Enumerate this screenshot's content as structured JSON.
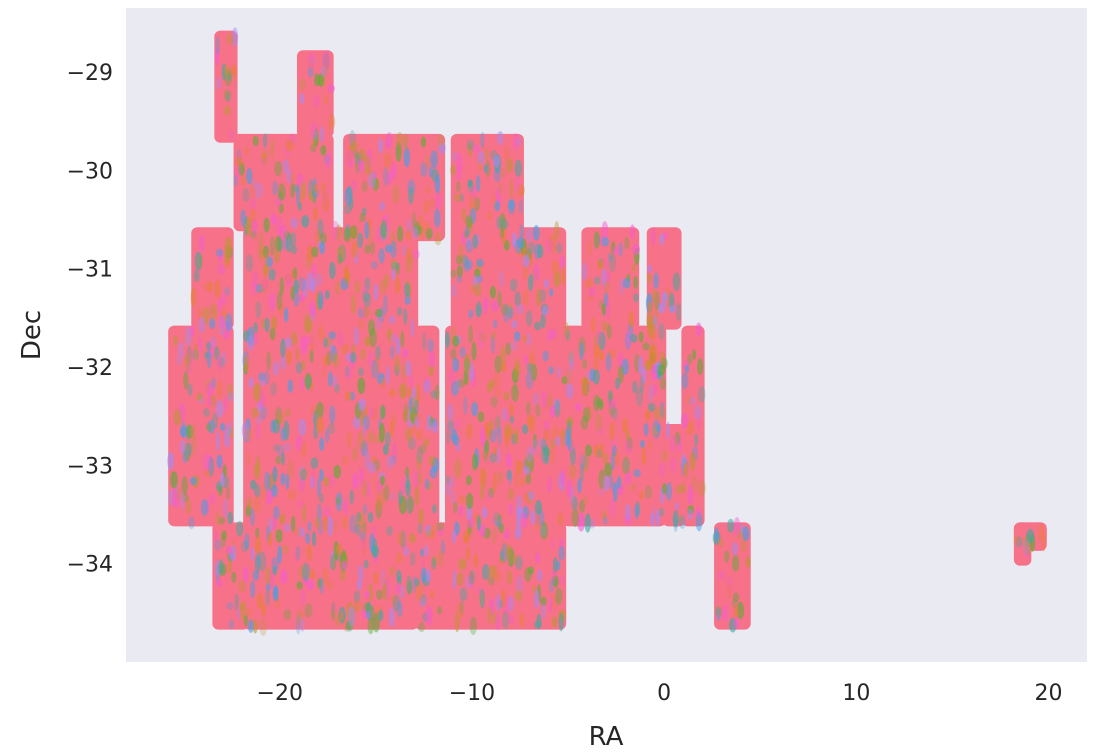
{
  "chart_data": {
    "type": "scatter",
    "xlabel": "RA",
    "ylabel": "Dec",
    "xlim": [
      -28,
      22
    ],
    "ylim": [
      -35.0,
      -28.35
    ],
    "grid": false,
    "background": "#eaeaf2",
    "xticks": [
      -20,
      -10,
      0,
      10,
      20
    ],
    "xtick_labels": [
      "−20",
      "−10",
      "0",
      "10",
      "20"
    ],
    "yticks": [
      -29,
      -30,
      -31,
      -32,
      -33,
      -34
    ],
    "ytick_labels": [
      "−29",
      "−30",
      "−31",
      "−32",
      "−33",
      "−34"
    ],
    "colors": {
      "primary": "#f77189",
      "accents": [
        "#3ba3ec",
        "#36ada4",
        "#50b131",
        "#bb9832",
        "#f45cd4",
        "#a48cf4",
        "#e68332"
      ]
    },
    "regions": [
      {
        "ra": [
          -25.7,
          -22.5
        ],
        "dec": [
          -33.6,
          -31.6
        ]
      },
      {
        "ra": [
          -24.5,
          -22.5
        ],
        "dec": [
          -31.6,
          -30.6
        ]
      },
      {
        "ra": [
          -23.4,
          -21.7
        ],
        "dec": [
          -34.65,
          -33.6
        ]
      },
      {
        "ra": [
          -23.3,
          -22.3
        ],
        "dec": [
          -29.7,
          -28.6
        ]
      },
      {
        "ra": [
          -22.3,
          -17.3
        ],
        "dec": [
          -30.6,
          -29.65
        ]
      },
      {
        "ra": [
          -19.0,
          -17.3
        ],
        "dec": [
          -29.65,
          -28.8
        ]
      },
      {
        "ra": [
          -21.8,
          -12.9
        ],
        "dec": [
          -34.65,
          -30.6
        ]
      },
      {
        "ra": [
          -16.6,
          -11.5
        ],
        "dec": [
          -30.7,
          -29.65
        ]
      },
      {
        "ra": [
          -12.9,
          -11.8
        ],
        "dec": [
          -33.6,
          -31.6
        ]
      },
      {
        "ra": [
          -12.9,
          -5.2
        ],
        "dec": [
          -34.65,
          -33.6
        ]
      },
      {
        "ra": [
          -11.3,
          -8.4
        ],
        "dec": [
          -33.6,
          -31.6
        ]
      },
      {
        "ra": [
          -11.0,
          -7.4
        ],
        "dec": [
          -31.6,
          -29.65
        ]
      },
      {
        "ra": [
          -8.4,
          -5.2
        ],
        "dec": [
          -33.6,
          -31.6
        ]
      },
      {
        "ra": [
          -7.6,
          -5.2
        ],
        "dec": [
          -31.6,
          -30.6
        ]
      },
      {
        "ra": [
          -5.2,
          0.0
        ],
        "dec": [
          -33.6,
          -31.6
        ]
      },
      {
        "ra": [
          -4.2,
          -1.4
        ],
        "dec": [
          -31.6,
          -30.6
        ]
      },
      {
        "ra": [
          -0.8,
          0.8
        ],
        "dec": [
          -31.6,
          -30.6
        ]
      },
      {
        "ra": [
          -0.8,
          0.0
        ],
        "dec": [
          -32.6,
          -31.6
        ]
      },
      {
        "ra": [
          1.0,
          2.0
        ],
        "dec": [
          -33.6,
          -31.6
        ]
      },
      {
        "ra": [
          0.0,
          1.0
        ],
        "dec": [
          -33.6,
          -32.6
        ]
      },
      {
        "ra": [
          2.7,
          4.4
        ],
        "dec": [
          -34.65,
          -33.6
        ]
      },
      {
        "ra": [
          18.3,
          19.0
        ],
        "dec": [
          -34.0,
          -33.6
        ]
      },
      {
        "ra": [
          18.3,
          19.8
        ],
        "dec": [
          -33.85,
          -33.6
        ]
      },
      {
        "ra": [
          19.0,
          19.8
        ],
        "dec": [
          -33.8,
          -33.6
        ]
      }
    ]
  }
}
